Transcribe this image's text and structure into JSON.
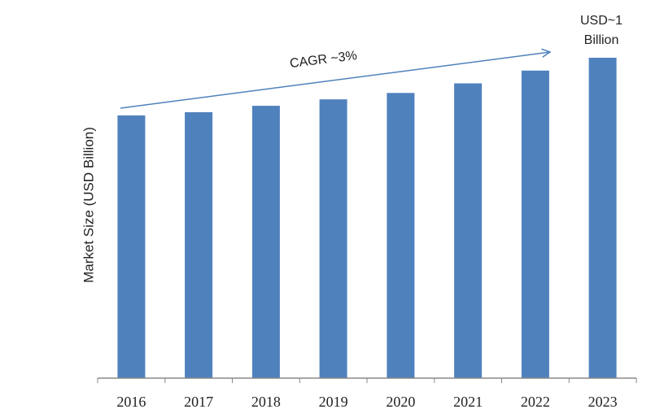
{
  "chart_data": {
    "type": "bar",
    "title": "",
    "xlabel": "",
    "ylabel": "Market Size (USD Billion)",
    "categories": [
      "2016",
      "2017",
      "2018",
      "2019",
      "2020",
      "2021",
      "2022",
      "2023"
    ],
    "values": [
      0.82,
      0.83,
      0.85,
      0.87,
      0.89,
      0.92,
      0.96,
      1.0
    ],
    "ylim": [
      0,
      1.0
    ],
    "grid": false,
    "legend": "none",
    "bar_color": "#4F81BD",
    "annotations": {
      "cagr_label": "CAGR ~3%",
      "end_label_line1": "USD~1",
      "end_label_line2": "Billion"
    },
    "arrow_color": "#4F81BD"
  }
}
